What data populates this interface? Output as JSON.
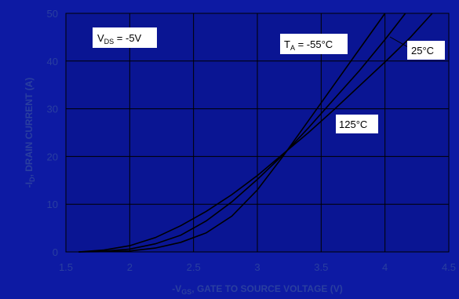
{
  "chart_data": {
    "type": "line",
    "xlabel": {
      "prefix": "-V",
      "sub": "GS",
      "suffix": ", GATE TO SOURCE VOLTAGE (V)"
    },
    "ylabel": {
      "prefix": "-I",
      "sub": "D",
      "suffix": ", DRAIN CURRENT (A)"
    },
    "xlim": [
      1.5,
      4.5
    ],
    "ylim": [
      0,
      50
    ],
    "x_ticks": [
      1.5,
      2,
      2.5,
      3,
      3.5,
      4,
      4.5
    ],
    "y_ticks": [
      0,
      10,
      20,
      30,
      40,
      50
    ],
    "x_tick_labels": [
      "1.5",
      "2",
      "2.5",
      "3",
      "3.5",
      "4",
      "4.5"
    ],
    "y_tick_labels": [
      "0",
      "10",
      "20",
      "30",
      "40",
      "50"
    ],
    "grid": true,
    "series": [
      {
        "name": "-55°C",
        "x": [
          1.6,
          1.8,
          2.0,
          2.2,
          2.4,
          2.6,
          2.8,
          3.0,
          3.2,
          3.4,
          3.6,
          3.8,
          4.0
        ],
        "y": [
          0,
          0.05,
          0.2,
          0.8,
          2.0,
          4.0,
          7.5,
          13.0,
          20.0,
          27.5,
          35.0,
          42.5,
          50.0
        ]
      },
      {
        "name": "25°C",
        "x": [
          1.6,
          1.8,
          2.0,
          2.2,
          2.4,
          2.6,
          2.8,
          3.0,
          3.2,
          3.4,
          3.6,
          3.8,
          4.0,
          4.16
        ],
        "y": [
          0,
          0.15,
          0.6,
          1.7,
          3.5,
          6.5,
          10.5,
          15.2,
          20.3,
          26.0,
          32.0,
          38.0,
          44.5,
          50.0
        ]
      },
      {
        "name": "125°C",
        "x": [
          1.6,
          1.8,
          2.0,
          2.2,
          2.4,
          2.6,
          2.8,
          3.0,
          3.2,
          3.4,
          3.6,
          3.8,
          4.0,
          4.2,
          4.37
        ],
        "y": [
          0,
          0.4,
          1.3,
          3.0,
          5.5,
          8.5,
          12.0,
          16.0,
          20.5,
          25.0,
          29.8,
          34.8,
          39.8,
          45.0,
          50.0
        ]
      }
    ],
    "annotations": {
      "condition": {
        "prefix": "V",
        "sub": "DS",
        "suffix": " = -5V"
      },
      "temp_label": {
        "prefix": "T",
        "sub": "A",
        "suffix": " = -55°C"
      },
      "label_25": "25°C",
      "label_125": "125°C"
    },
    "colors": {
      "background": "#0d1aa3",
      "plot_area": "#0a1593",
      "grid": "#000000",
      "curves": "#000000",
      "tick_text": "#2a3fa0",
      "label_box": "#ffffff"
    }
  }
}
